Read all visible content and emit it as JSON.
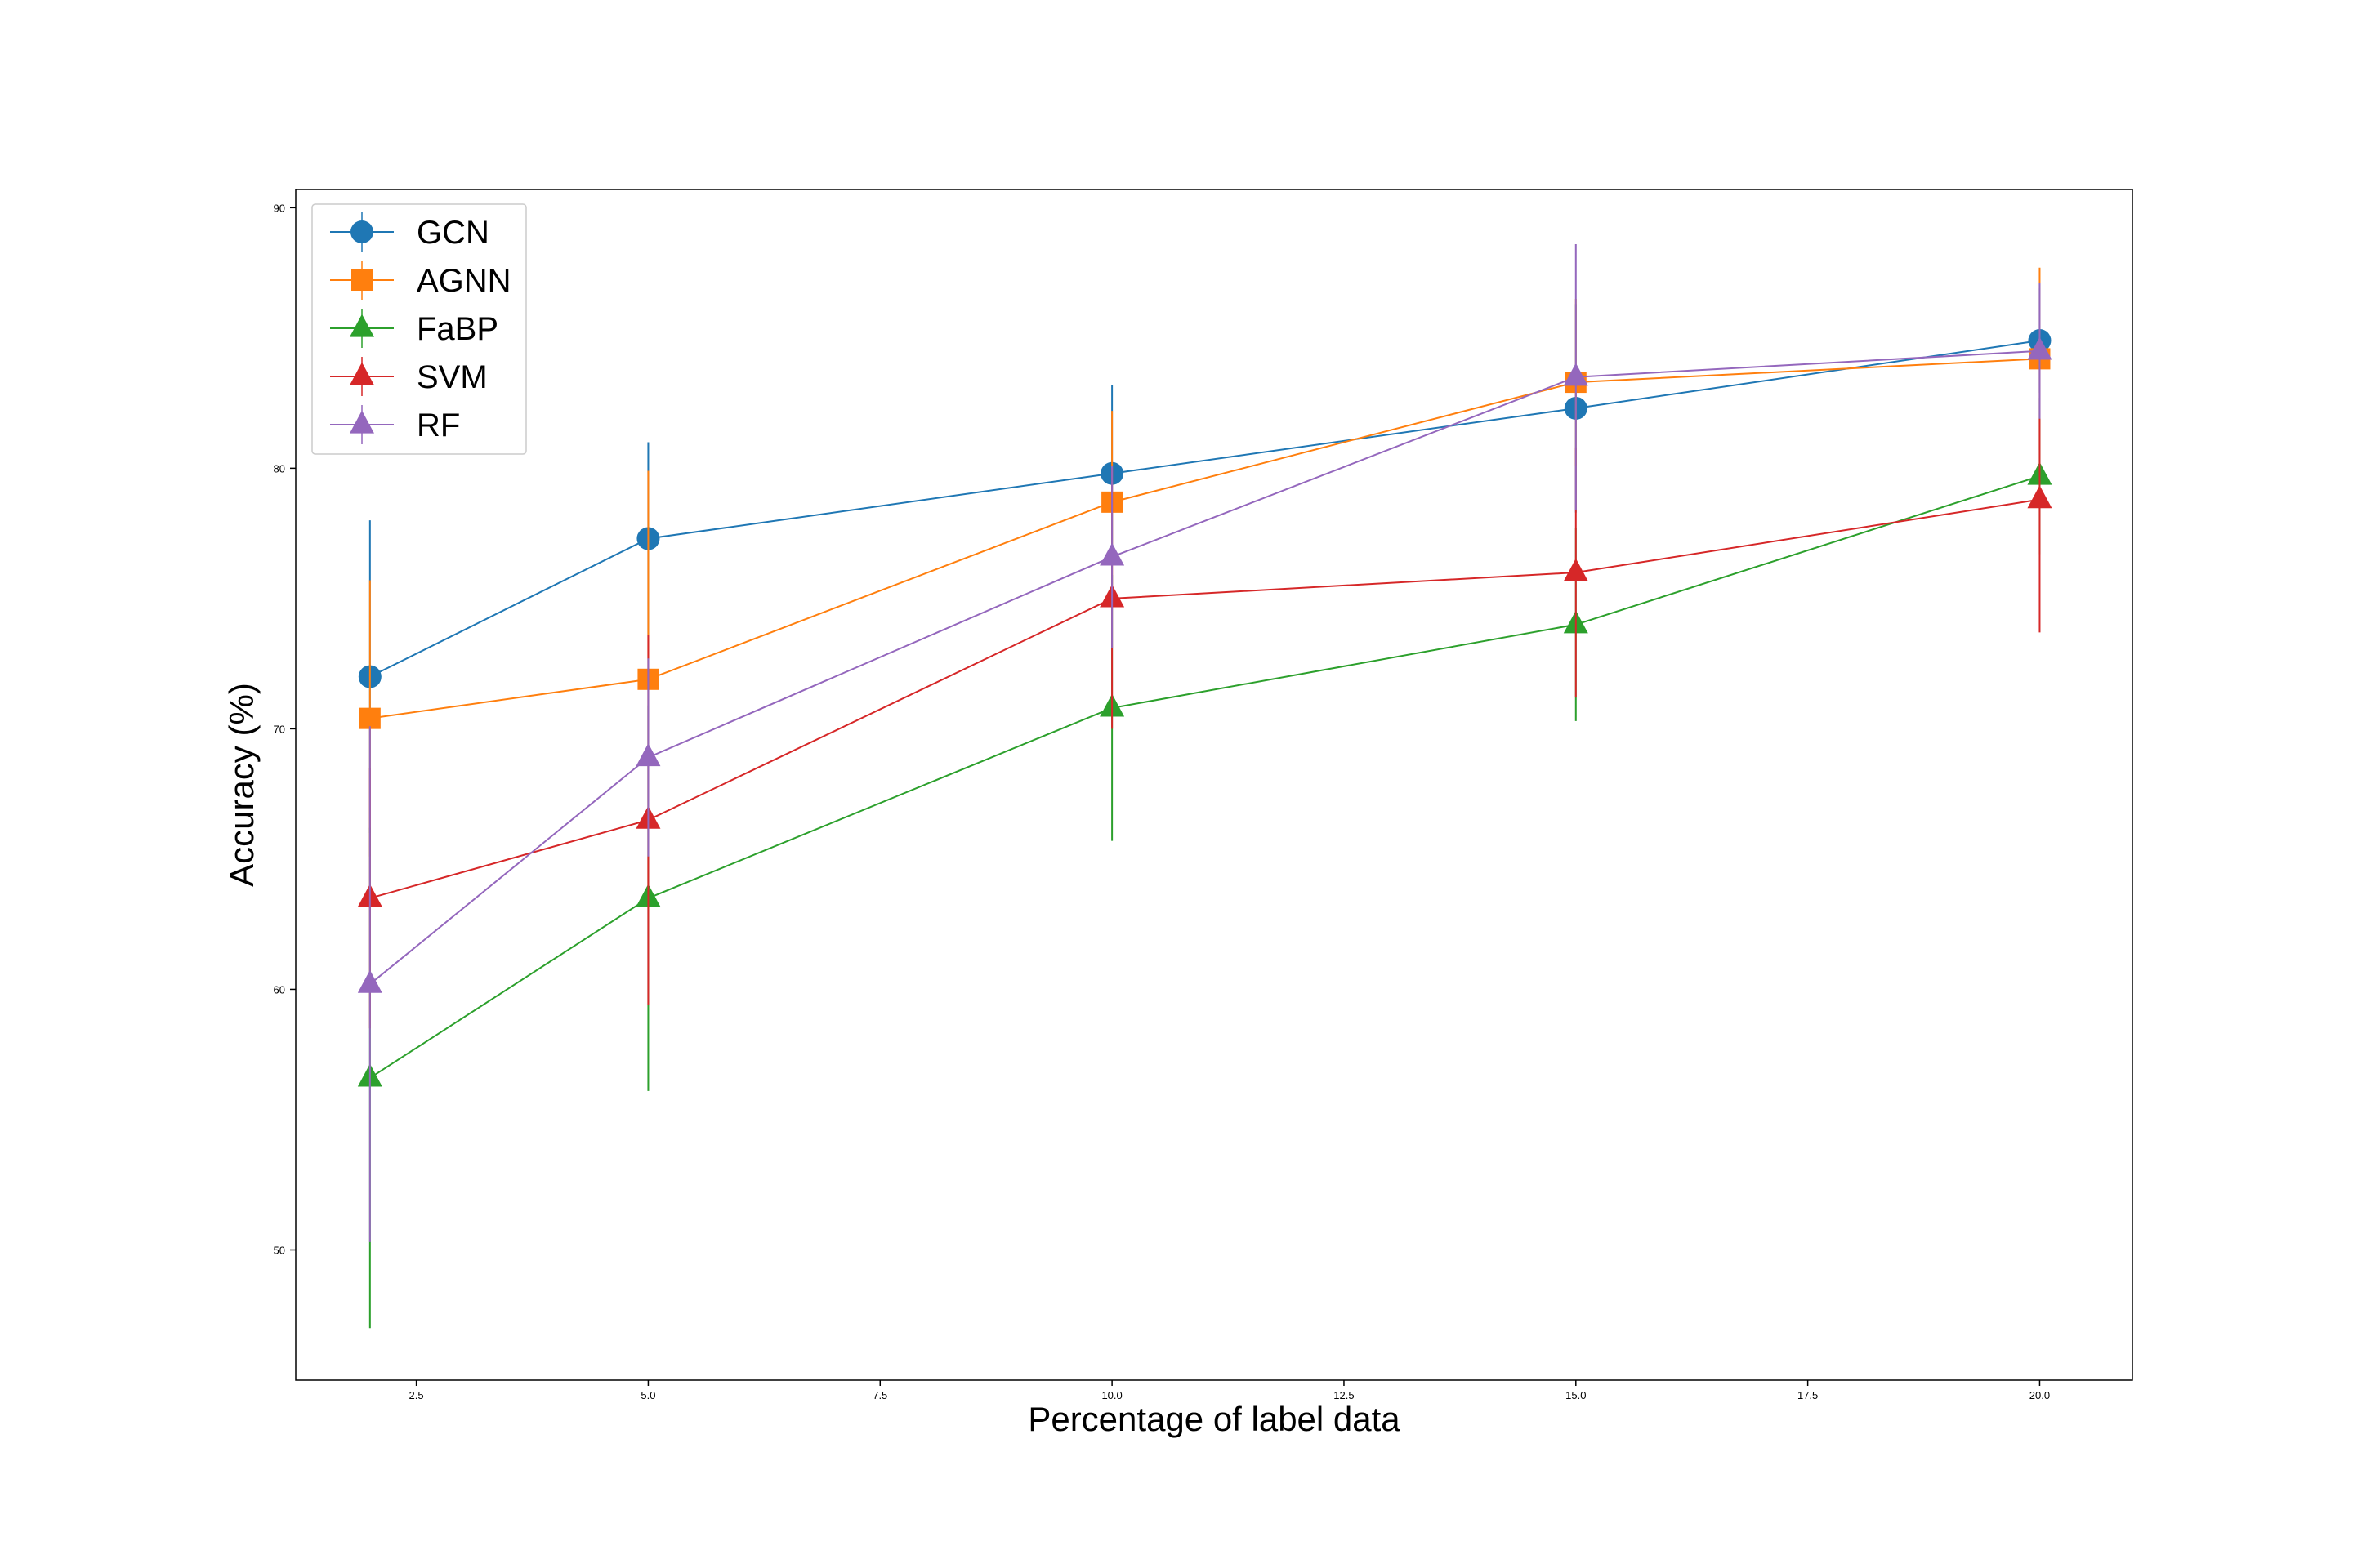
{
  "chart_data": {
    "type": "line",
    "title": "",
    "xlabel": "Percentage of label data",
    "ylabel": "Accuracy (%)",
    "xlim": [
      1.2,
      21.0
    ],
    "ylim": [
      45.0,
      90.7
    ],
    "x_ticks": [
      2.5,
      5.0,
      7.5,
      10.0,
      12.5,
      15.0,
      17.5,
      20.0
    ],
    "x_tick_labels": [
      "2.5",
      "5.0",
      "7.5",
      "10.0",
      "12.5",
      "15.0",
      "17.5",
      "20.0"
    ],
    "y_ticks": [
      50,
      60,
      70,
      80,
      90
    ],
    "y_tick_labels": [
      "50",
      "60",
      "70",
      "80",
      "90"
    ],
    "grid": false,
    "legend_position": "top-left",
    "x": [
      2,
      5,
      10,
      15,
      20
    ],
    "series": [
      {
        "name": "GCN",
        "color": "#1f77b4",
        "marker": "circle",
        "values": [
          72.0,
          77.3,
          79.8,
          82.3,
          84.9
        ],
        "errors": [
          6.0,
          3.7,
          3.4,
          4.0,
          2.0
        ]
      },
      {
        "name": "AGNN",
        "color": "#ff7f0e",
        "marker": "square",
        "values": [
          70.4,
          71.9,
          78.7,
          83.3,
          84.2
        ],
        "errors": [
          5.3,
          8.0,
          3.5,
          3.2,
          3.5
        ]
      },
      {
        "name": "FaBP",
        "color": "#2ca02c",
        "marker": "triangle",
        "values": [
          56.6,
          63.5,
          70.8,
          74.0,
          79.7
        ],
        "errors": [
          9.6,
          7.4,
          5.1,
          3.7,
          3.0
        ]
      },
      {
        "name": "SVM",
        "color": "#d62728",
        "marker": "triangle",
        "values": [
          63.5,
          66.5,
          75.0,
          76.0,
          78.8
        ],
        "errors": [
          5.0,
          7.1,
          5.0,
          4.8,
          5.1
        ]
      },
      {
        "name": "RF",
        "color": "#9467bd",
        "marker": "triangle",
        "values": [
          60.2,
          68.9,
          76.6,
          83.5,
          84.5
        ],
        "errors": [
          9.9,
          3.8,
          3.5,
          5.1,
          2.6
        ]
      }
    ]
  }
}
